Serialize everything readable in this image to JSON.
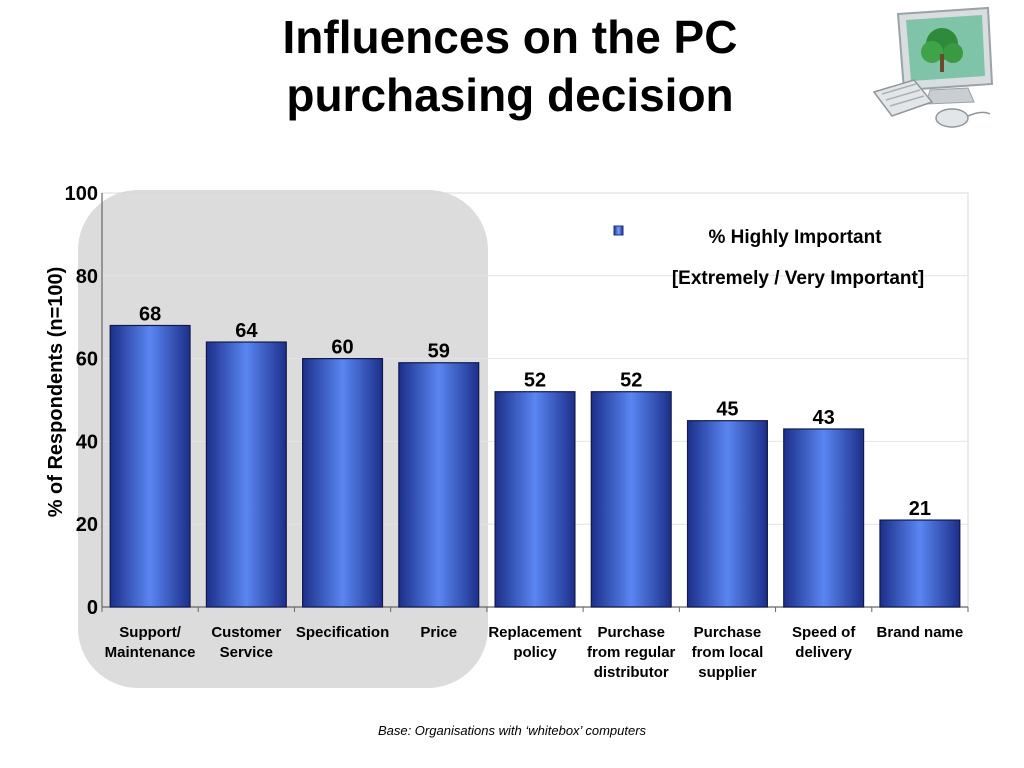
{
  "page": {
    "title_line1": "Influences on the PC",
    "title_line2": "purchasing decision",
    "footnote": "Base:  Organisations with ‘whitebox’ computers"
  },
  "icons": {
    "illustration": "desktop-computer-icon"
  },
  "colors": {
    "bar": "#4a6fe0",
    "bar_dark": "#1c2f8a",
    "highlight_panel": "#dcdcdc",
    "grid": "#e4e4e4"
  },
  "chart_data": {
    "type": "bar",
    "categories": [
      [
        "Support/",
        "Maintenance"
      ],
      [
        "Customer",
        "Service"
      ],
      [
        "Specification"
      ],
      [
        "Price"
      ],
      [
        "Replacement",
        "policy"
      ],
      [
        "Purchase",
        "from regular",
        "distributor"
      ],
      [
        "Purchase",
        "from local",
        "supplier"
      ],
      [
        "Speed of",
        "delivery"
      ],
      [
        "Brand name"
      ]
    ],
    "series": [
      {
        "name": "% Highly Important",
        "values": [
          68,
          64,
          60,
          59,
          52,
          52,
          45,
          43,
          21
        ]
      }
    ],
    "data_labels": [
      "68",
      "64",
      "60",
      "59",
      "52",
      "52",
      "45",
      "43",
      "21"
    ],
    "legend_note": "[Extremely / Very Important]",
    "legend_position": "top-right",
    "ylabel": "% of Respondents (n=100)",
    "xlabel": "",
    "ylim": [
      0,
      100
    ],
    "yticks": [
      0,
      20,
      40,
      60,
      80,
      100
    ],
    "grid": true,
    "highlighted_categories": [
      0,
      1,
      2,
      3
    ]
  }
}
